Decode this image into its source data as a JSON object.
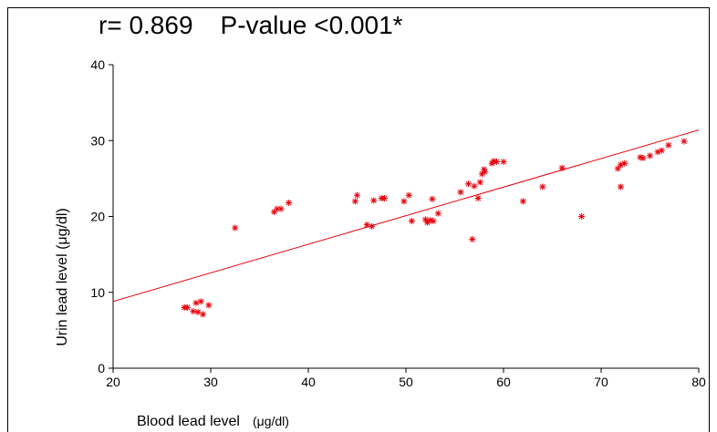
{
  "chart_data": {
    "type": "scatter",
    "title": "r= 0.869",
    "subtitle": "P-value <0.001*",
    "xlabel": "Blood lead level",
    "xunit": "(μg/dl)",
    "ylabel": "Urin lead level (μg/dl)",
    "xlim": [
      20,
      80
    ],
    "ylim": [
      0,
      40
    ],
    "xticks": [
      "20",
      "30",
      "40",
      "50",
      "60",
      "70",
      "80"
    ],
    "yticks": [
      "0",
      "10",
      "20",
      "30",
      "40"
    ],
    "marker": "asterisk",
    "color": "#e8000b",
    "grid": false,
    "trendline": {
      "x": [
        20,
        80
      ],
      "y": [
        8.8,
        31.4
      ]
    },
    "points": [
      [
        27.3,
        8.0
      ],
      [
        27.6,
        8.0
      ],
      [
        28.2,
        7.5
      ],
      [
        28.5,
        8.6
      ],
      [
        28.7,
        7.4
      ],
      [
        29.0,
        8.8
      ],
      [
        29.2,
        7.1
      ],
      [
        29.8,
        8.3
      ],
      [
        32.5,
        18.5
      ],
      [
        36.5,
        20.6
      ],
      [
        36.8,
        21.0
      ],
      [
        37.2,
        21.0
      ],
      [
        38.0,
        21.8
      ],
      [
        44.8,
        22.0
      ],
      [
        45.0,
        22.8
      ],
      [
        46.0,
        18.9
      ],
      [
        46.5,
        18.7
      ],
      [
        46.7,
        22.1
      ],
      [
        47.5,
        22.4
      ],
      [
        47.8,
        22.4
      ],
      [
        49.8,
        22.0
      ],
      [
        50.3,
        22.8
      ],
      [
        50.6,
        19.4
      ],
      [
        52.0,
        19.6
      ],
      [
        52.2,
        19.2
      ],
      [
        52.5,
        19.5
      ],
      [
        52.8,
        19.4
      ],
      [
        52.7,
        22.3
      ],
      [
        53.3,
        20.4
      ],
      [
        55.6,
        23.2
      ],
      [
        56.4,
        24.3
      ],
      [
        56.8,
        17.0
      ],
      [
        57.0,
        24.0
      ],
      [
        57.4,
        22.4
      ],
      [
        57.6,
        24.5
      ],
      [
        57.8,
        25.6
      ],
      [
        58.0,
        26.2
      ],
      [
        58.1,
        25.9
      ],
      [
        58.8,
        27.0
      ],
      [
        59.0,
        27.3
      ],
      [
        59.3,
        27.2
      ],
      [
        60.0,
        27.2
      ],
      [
        62.0,
        22.0
      ],
      [
        64.0,
        23.9
      ],
      [
        66.0,
        26.4
      ],
      [
        68.0,
        20.0
      ],
      [
        71.7,
        26.3
      ],
      [
        72.0,
        26.8
      ],
      [
        72.0,
        23.9
      ],
      [
        72.4,
        27.0
      ],
      [
        74.0,
        27.8
      ],
      [
        74.3,
        27.7
      ],
      [
        75.0,
        28.0
      ],
      [
        75.8,
        28.5
      ],
      [
        76.2,
        28.7
      ],
      [
        76.9,
        29.4
      ],
      [
        78.5,
        29.9
      ]
    ]
  }
}
